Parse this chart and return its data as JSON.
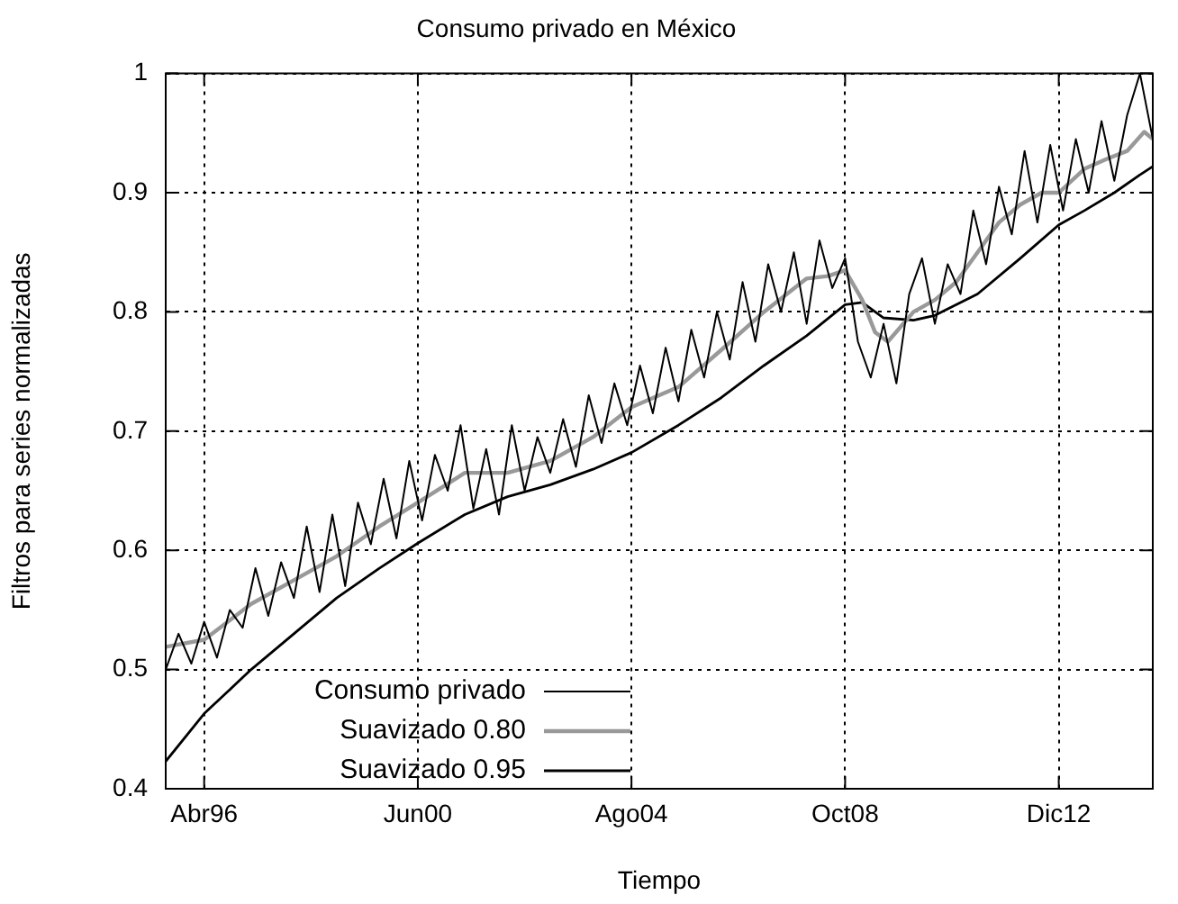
{
  "chart_data": {
    "type": "line",
    "title": "Consumo privado en México",
    "xlabel": "Tiempo",
    "ylabel": "Filtros para series normalizadas",
    "xlim": [
      "1995-07",
      "2014-10"
    ],
    "xticks": [
      {
        "value": "1996-04",
        "label": "Abr96"
      },
      {
        "value": "2000-06",
        "label": "Jun00"
      },
      {
        "value": "2004-08",
        "label": "Ago04"
      },
      {
        "value": "2008-10",
        "label": "Oct08"
      },
      {
        "value": "2012-12",
        "label": "Dic12"
      }
    ],
    "ylim": [
      0.4,
      1
    ],
    "yticks": [
      0.4,
      0.5,
      0.6,
      0.7,
      0.8,
      0.9,
      1
    ],
    "grid": true,
    "legend": "bottom left",
    "series": [
      {
        "name": "Consumo privado",
        "color": "#000000",
        "x": [
          "1995-07",
          "1995-10",
          "1996-01",
          "1996-04",
          "1996-07",
          "1996-10",
          "1997-01",
          "1997-04",
          "1997-07",
          "1997-10",
          "1998-01",
          "1998-04",
          "1998-07",
          "1998-10",
          "1999-01",
          "1999-04",
          "1999-07",
          "1999-10",
          "2000-01",
          "2000-04",
          "2000-07",
          "2000-10",
          "2001-01",
          "2001-04",
          "2001-07",
          "2001-10",
          "2002-01",
          "2002-04",
          "2002-07",
          "2002-10",
          "2003-01",
          "2003-04",
          "2003-07",
          "2003-10",
          "2004-01",
          "2004-04",
          "2004-07",
          "2004-10",
          "2005-01",
          "2005-04",
          "2005-07",
          "2005-10",
          "2006-01",
          "2006-04",
          "2006-07",
          "2006-10",
          "2007-01",
          "2007-04",
          "2007-07",
          "2007-10",
          "2008-01",
          "2008-04",
          "2008-07",
          "2008-10",
          "2009-01",
          "2009-04",
          "2009-07",
          "2009-10",
          "2010-01",
          "2010-04",
          "2010-07",
          "2010-10",
          "2011-01",
          "2011-04",
          "2011-07",
          "2011-10",
          "2012-01",
          "2012-04",
          "2012-07",
          "2012-10",
          "2013-01",
          "2013-04",
          "2013-07",
          "2013-10",
          "2014-01",
          "2014-04",
          "2014-07",
          "2014-10"
        ],
        "values": [
          0.5,
          0.53,
          0.505,
          0.54,
          0.51,
          0.55,
          0.535,
          0.585,
          0.545,
          0.59,
          0.56,
          0.62,
          0.565,
          0.63,
          0.57,
          0.64,
          0.605,
          0.66,
          0.61,
          0.675,
          0.625,
          0.68,
          0.65,
          0.705,
          0.635,
          0.685,
          0.63,
          0.705,
          0.65,
          0.695,
          0.665,
          0.71,
          0.67,
          0.73,
          0.69,
          0.74,
          0.705,
          0.755,
          0.715,
          0.77,
          0.725,
          0.785,
          0.745,
          0.8,
          0.76,
          0.825,
          0.775,
          0.84,
          0.8,
          0.85,
          0.79,
          0.86,
          0.82,
          0.845,
          0.775,
          0.745,
          0.79,
          0.74,
          0.815,
          0.845,
          0.79,
          0.84,
          0.815,
          0.885,
          0.84,
          0.905,
          0.865,
          0.935,
          0.875,
          0.94,
          0.885,
          0.945,
          0.9,
          0.96,
          0.91,
          0.965,
          1.0,
          0.945
        ]
      },
      {
        "name": "Suavizado 0.80",
        "color": "#999999",
        "x": [
          "1995-07",
          "1996-04",
          "1997-03",
          "1998-01",
          "1998-11",
          "1999-09",
          "2000-06",
          "2001-05",
          "2002-03",
          "2003-01",
          "2003-11",
          "2004-08",
          "2005-07",
          "2006-05",
          "2007-03",
          "2008-01",
          "2008-06",
          "2008-10",
          "2009-02",
          "2009-05",
          "2009-08",
          "2010-02",
          "2010-07",
          "2010-12",
          "2011-05",
          "2011-10",
          "2012-03",
          "2012-08",
          "2012-12",
          "2013-06",
          "2013-11",
          "2014-04",
          "2014-08",
          "2014-10"
        ],
        "values": [
          0.519,
          0.525,
          0.555,
          0.575,
          0.595,
          0.62,
          0.64,
          0.665,
          0.665,
          0.675,
          0.695,
          0.72,
          0.737,
          0.768,
          0.8,
          0.828,
          0.83,
          0.835,
          0.81,
          0.783,
          0.775,
          0.8,
          0.81,
          0.825,
          0.85,
          0.875,
          0.89,
          0.9,
          0.9,
          0.92,
          0.928,
          0.935,
          0.951,
          0.945
        ]
      },
      {
        "name": "Suavizado 0.95",
        "color": "#000000",
        "x": [
          "1995-07",
          "1996-04",
          "1997-03",
          "1998-01",
          "1998-11",
          "1999-09",
          "2000-06",
          "2001-05",
          "2002-03",
          "2003-01",
          "2003-11",
          "2004-08",
          "2005-07",
          "2006-05",
          "2007-03",
          "2008-01",
          "2008-10",
          "2009-02",
          "2009-07",
          "2010-02",
          "2010-07",
          "2011-05",
          "2012-03",
          "2012-12",
          "2013-06",
          "2014-01",
          "2014-07",
          "2014-10"
        ],
        "values": [
          0.423,
          0.463,
          0.5,
          0.53,
          0.56,
          0.585,
          0.606,
          0.63,
          0.645,
          0.655,
          0.668,
          0.682,
          0.705,
          0.728,
          0.755,
          0.78,
          0.806,
          0.808,
          0.795,
          0.793,
          0.797,
          0.815,
          0.845,
          0.873,
          0.885,
          0.9,
          0.915,
          0.922
        ]
      }
    ]
  }
}
